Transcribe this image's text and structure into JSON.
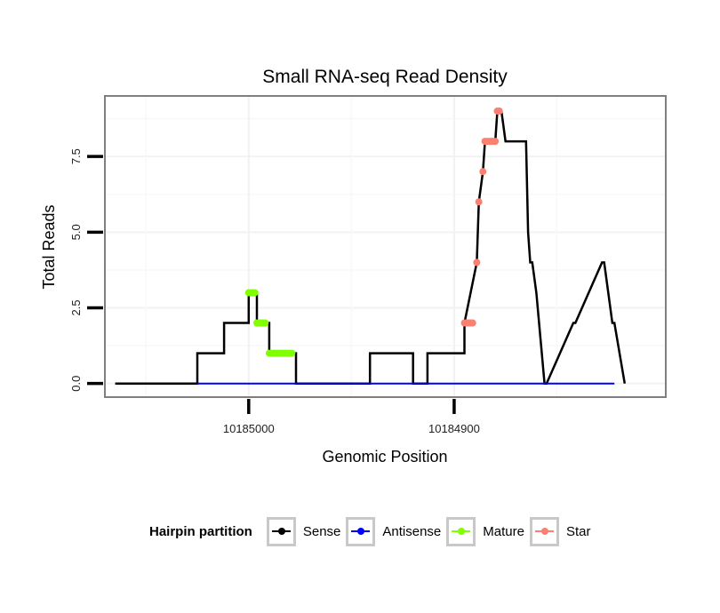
{
  "chart_data": {
    "type": "line",
    "title": "Small RNA-seq Read Density",
    "xlabel": "Genomic Position",
    "ylabel": "Total Reads",
    "x_reversed": true,
    "xlim": [
      10185070,
      10184797
    ],
    "ylim": [
      -0.45,
      9.5
    ],
    "x_ticks": [
      10185000,
      10184900
    ],
    "x_tick_labels": [
      "10185000",
      "10184900"
    ],
    "y_ticks": [
      0,
      2.5,
      5.0,
      7.5
    ],
    "y_tick_labels": [
      "0.0",
      "2.5",
      "5.0",
      "7.5"
    ],
    "grid": true,
    "legend": {
      "title": "Hairpin partition",
      "position": "bottom",
      "entries": [
        {
          "name": "Sense",
          "color": "#000000"
        },
        {
          "name": "Antisense",
          "color": "#0000ff"
        },
        {
          "name": "Mature",
          "color": "#7fff00"
        },
        {
          "name": "Star",
          "color": "#fa8072"
        }
      ]
    },
    "series": [
      {
        "name": "Sense",
        "color": "#000000",
        "x": [
          10185065,
          10185025,
          10185025,
          10185012,
          10185012,
          10185000,
          10185000,
          10184996,
          10184996,
          10184990,
          10184990,
          10184977,
          10184977,
          10184941,
          10184941,
          10184920,
          10184920,
          10184913,
          10184913,
          10184895,
          10184895,
          10184889,
          10184888,
          10184886,
          10184885,
          10184880,
          10184879,
          10184877,
          10184875,
          10184865,
          10184864,
          10184863,
          10184862,
          10184860,
          10184856,
          10184855,
          10184842,
          10184841,
          10184828,
          10184827,
          10184823,
          10184822,
          10184817
        ],
        "y": [
          0,
          0,
          1,
          1,
          2,
          2,
          3,
          3,
          2,
          2,
          1,
          1,
          0,
          0,
          1,
          1,
          0,
          0,
          1,
          1,
          2,
          4,
          6,
          7,
          8,
          8,
          9,
          9,
          8,
          8,
          5,
          4,
          4,
          3,
          0,
          0,
          2,
          2,
          4,
          4,
          2,
          2,
          0
        ]
      },
      {
        "name": "Antisense",
        "color": "#0000ff",
        "x": [
          10185025,
          10184822
        ],
        "y": [
          0,
          0
        ]
      },
      {
        "name": "Mature",
        "color": "#7fff00",
        "x": [
          10185000,
          10184999,
          10184998,
          10184997,
          10184996,
          10184995,
          10184994,
          10184993,
          10184992,
          10184990,
          10184989,
          10184988,
          10184987,
          10184986,
          10184985,
          10184984,
          10184983,
          10184982,
          10184981,
          10184980,
          10184979
        ],
        "y": [
          3,
          3,
          3,
          3,
          2,
          2,
          2,
          2,
          2,
          1,
          1,
          1,
          1,
          1,
          1,
          1,
          1,
          1,
          1,
          1,
          1
        ]
      },
      {
        "name": "Star",
        "color": "#fa8072",
        "x": [
          10184895,
          10184894,
          10184893,
          10184892,
          10184891,
          10184889,
          10184888,
          10184886,
          10184885,
          10184884,
          10184883,
          10184882,
          10184881,
          10184880,
          10184879,
          10184878
        ],
        "y": [
          2,
          2,
          2,
          2,
          2,
          4,
          6,
          7,
          8,
          8,
          8,
          8,
          8,
          8,
          9,
          9
        ]
      }
    ]
  }
}
